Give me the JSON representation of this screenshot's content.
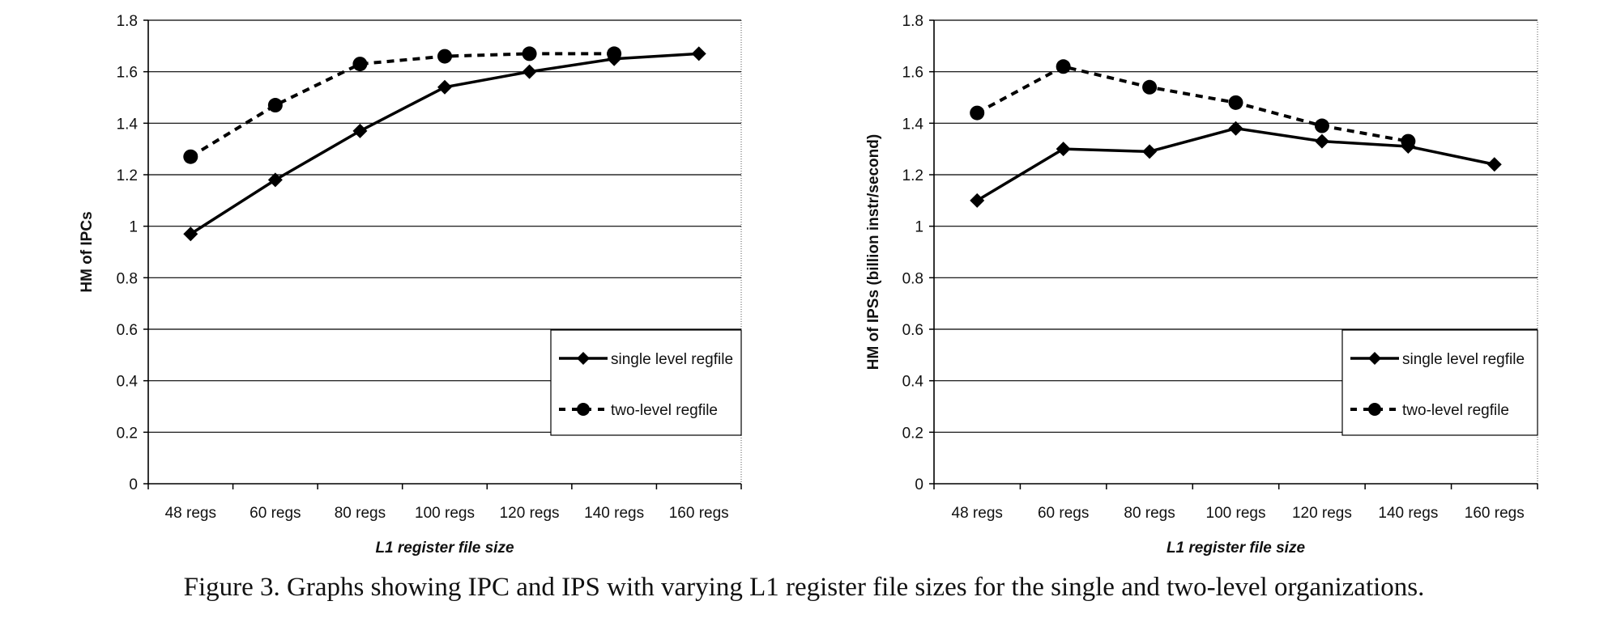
{
  "caption": "Figure 3. Graphs showing IPC and IPS with varying L1 register file sizes for the single and two-level organizations.",
  "chart_data": [
    {
      "type": "line",
      "categories": [
        "48 regs",
        "60 regs",
        "80 regs",
        "100 regs",
        "120 regs",
        "140 regs",
        "160 regs"
      ],
      "series": [
        {
          "name": "single level regfile",
          "values": [
            0.97,
            1.18,
            1.37,
            1.54,
            1.6,
            1.65,
            1.67
          ],
          "style": "solid",
          "marker": "diamond"
        },
        {
          "name": "two-level regfile",
          "values": [
            1.27,
            1.47,
            1.63,
            1.66,
            1.67,
            1.67,
            null
          ],
          "style": "dashed",
          "marker": "circle"
        }
      ],
      "xlabel": "L1 register file size",
      "ylabel": "HM of IPCs",
      "ylim": [
        0,
        1.8
      ],
      "yticks": [
        "0",
        "0.2",
        "0.4",
        "0.6",
        "0.8",
        "1",
        "1.2",
        "1.4",
        "1.6",
        "1.8"
      ],
      "grid": true,
      "legend_position": "bottom-right"
    },
    {
      "type": "line",
      "categories": [
        "48 regs",
        "60 regs",
        "80 regs",
        "100 regs",
        "120 regs",
        "140 regs",
        "160 regs"
      ],
      "series": [
        {
          "name": "single level regfile",
          "values": [
            1.1,
            1.3,
            1.29,
            1.38,
            1.33,
            1.31,
            1.24
          ],
          "style": "solid",
          "marker": "diamond"
        },
        {
          "name": "two-level regfile",
          "values": [
            1.44,
            1.62,
            1.54,
            1.48,
            1.39,
            1.33,
            null
          ],
          "style": "dashed",
          "marker": "circle"
        }
      ],
      "xlabel": "L1 register file size",
      "ylabel": "HM of IPSs (billion instr/second)",
      "ylim": [
        0,
        1.8
      ],
      "yticks": [
        "0",
        "0.2",
        "0.4",
        "0.6",
        "0.8",
        "1",
        "1.2",
        "1.4",
        "1.6",
        "1.8"
      ],
      "grid": true,
      "legend_position": "bottom-right"
    }
  ]
}
